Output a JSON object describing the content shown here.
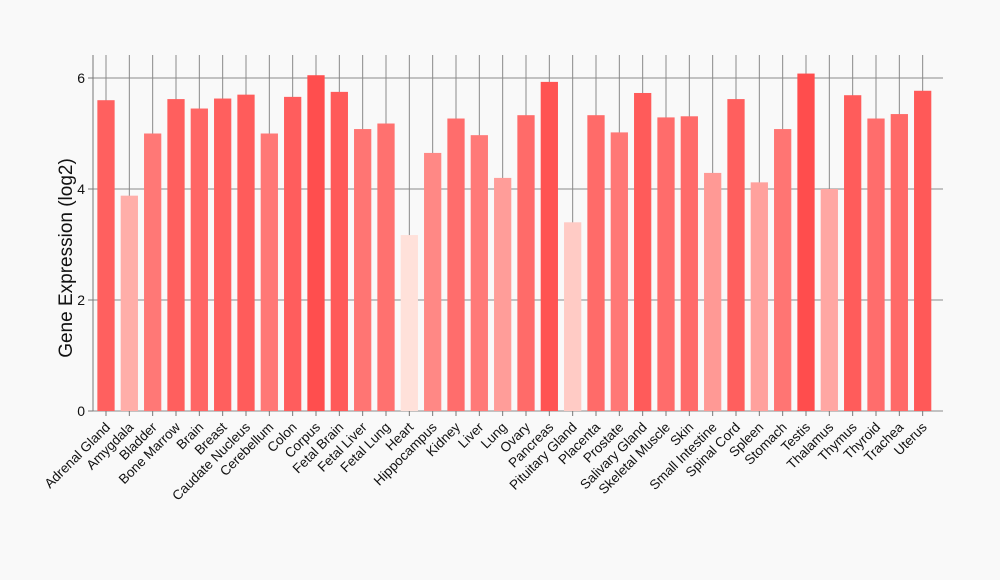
{
  "chart_data": {
    "type": "bar",
    "title": "",
    "xlabel": "",
    "ylabel": "Gene Expression (log2)",
    "ylim": [
      0,
      6
    ],
    "yticks": [
      0,
      2,
      4,
      6
    ],
    "grid": true,
    "categories": [
      "Adrenal Gland",
      "Amygdala",
      "Bladder",
      "Bone Marrow",
      "Brain",
      "Breast",
      "Caudate Nucleus",
      "Cerebellum",
      "Colon",
      "Corpus",
      "Fetal Brain",
      "Fetal Liver",
      "Fetal Lung",
      "Heart",
      "Hippocampus",
      "Kidney",
      "Liver",
      "Lung",
      "Ovary",
      "Pancreas",
      "Pituitary Gland",
      "Placenta",
      "Prostate",
      "Salivary Gland",
      "Skeletal Muscle",
      "Skin",
      "Small Intestine",
      "Spinal Cord",
      "Spleen",
      "Stomach",
      "Testis",
      "Thalamus",
      "Thymus",
      "Thyroid",
      "Trachea",
      "Uterus"
    ],
    "values": [
      5.6,
      3.88,
      5.0,
      5.62,
      5.45,
      5.63,
      5.7,
      5.0,
      5.66,
      6.05,
      5.75,
      5.08,
      5.18,
      3.17,
      4.65,
      5.27,
      4.97,
      4.2,
      5.33,
      5.93,
      3.4,
      5.33,
      5.02,
      5.73,
      5.29,
      5.31,
      4.29,
      5.62,
      4.12,
      5.08,
      6.08,
      4.0,
      5.69,
      5.27,
      5.35,
      5.77
    ],
    "color_low": "#ffe1da",
    "color_high": "#ff4d4d",
    "background": "#f9f9f9",
    "grid_color": "#8a8a8a"
  }
}
